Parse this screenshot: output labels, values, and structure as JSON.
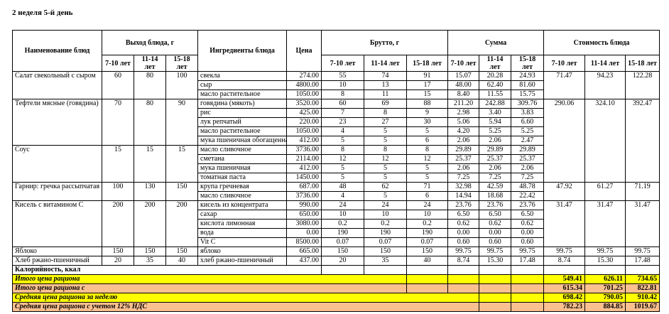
{
  "page": {
    "title": "2 неделя 5-й день"
  },
  "table": {
    "headers": {
      "dish": "Наименование блюд",
      "yield_group": "Выход блюда, г",
      "ingredients": "Ингредиенты блюда",
      "price": "Цена",
      "brutto_group": "Брутто, г",
      "sum_group": "Сумма",
      "cost_group": "Стоимость блюда",
      "age_groups": [
        "7-10 лет",
        "11-14 лет",
        "15-18 лет"
      ]
    },
    "dishes": [
      {
        "name": "Салат свекольный с сыром",
        "yield": [
          "60",
          "80",
          "100"
        ],
        "cost": [
          "71.47",
          "94.23",
          "122.28"
        ],
        "ingredients": [
          {
            "name": "свекла",
            "price": "274.00",
            "brutto": [
              "55",
              "74",
              "91"
            ],
            "sum": [
              "15.07",
              "20.28",
              "24.93"
            ]
          },
          {
            "name": "сыр",
            "price": "4800.00",
            "brutto": [
              "10",
              "13",
              "17"
            ],
            "sum": [
              "48.00",
              "62.40",
              "81.60"
            ]
          },
          {
            "name": "масло растительное",
            "price": "1050.00",
            "brutto": [
              "8",
              "11",
              "15"
            ],
            "sum": [
              "8.40",
              "11.55",
              "15.75"
            ]
          }
        ]
      },
      {
        "name": "Тефтели мясные (говядина)",
        "yield": [
          "70",
          "80",
          "90"
        ],
        "cost": [
          "290.06",
          "324.10",
          "392.47"
        ],
        "ingredients": [
          {
            "name": "говядина (мякоть)",
            "price": "3520.00",
            "brutto": [
              "60",
              "69",
              "88"
            ],
            "sum": [
              "211.20",
              "242.88",
              "309.76"
            ]
          },
          {
            "name": "рис",
            "price": "425.00",
            "brutto": [
              "7",
              "8",
              "9"
            ],
            "sum": [
              "2.98",
              "3.40",
              "3.83"
            ]
          },
          {
            "name": "лук репчатый",
            "price": "220.00",
            "brutto": [
              "23",
              "27",
              "30"
            ],
            "sum": [
              "5.06",
              "5.94",
              "6.60"
            ]
          },
          {
            "name": "масло растительное",
            "price": "1050.00",
            "brutto": [
              "4",
              "5",
              "5"
            ],
            "sum": [
              "4.20",
              "5.25",
              "5.25"
            ]
          },
          {
            "name": "мука пшеничная обогащенная",
            "price": "412.00",
            "brutto": [
              "5",
              "5",
              "6"
            ],
            "sum": [
              "2.06",
              "2.06",
              "2.47"
            ]
          }
        ]
      },
      {
        "name": "Соус",
        "yield": [
          "15",
          "15",
          "15"
        ],
        "cost": null,
        "ingredients": [
          {
            "name": "масло сливочное",
            "price": "3736.00",
            "brutto": [
              "8",
              "8",
              "8"
            ],
            "sum": [
              "29.89",
              "29.89",
              "29.89"
            ]
          },
          {
            "name": "сметана",
            "price": "2114.00",
            "brutto": [
              "12",
              "12",
              "12"
            ],
            "sum": [
              "25.37",
              "25.37",
              "25.37"
            ]
          },
          {
            "name": "мука пшеничная",
            "price": "412.00",
            "brutto": [
              "5",
              "5",
              "5"
            ],
            "sum": [
              "2.06",
              "2.06",
              "2.06"
            ]
          },
          {
            "name": "томатная паста",
            "price": "1450.00",
            "brutto": [
              "5",
              "5",
              "5"
            ],
            "sum": [
              "7.25",
              "7.25",
              "7.25"
            ]
          }
        ]
      },
      {
        "name": "Гарнир: гречка рассыпчатая",
        "yield": [
          "100",
          "130",
          "150"
        ],
        "cost": [
          "47.92",
          "61.27",
          "71.19"
        ],
        "ingredients": [
          {
            "name": "крупа гречневая",
            "price": "687.00",
            "brutto": [
              "48",
              "62",
              "71"
            ],
            "sum": [
              "32.98",
              "42.59",
              "48.78"
            ]
          },
          {
            "name": "масло сливочное",
            "price": "3736.00",
            "brutto": [
              "4",
              "5",
              "6"
            ],
            "sum": [
              "14.94",
              "18.68",
              "22.42"
            ]
          }
        ]
      },
      {
        "name": "Кисель с витамином С",
        "yield": [
          "200",
          "200",
          "200"
        ],
        "cost": [
          "31.47",
          "31.47",
          "31.47"
        ],
        "ingredients": [
          {
            "name": "кисель из концентрата",
            "price": "990.00",
            "brutto": [
              "24",
              "24",
              "24"
            ],
            "sum": [
              "23.76",
              "23.76",
              "23.76"
            ]
          },
          {
            "name": "сахар",
            "price": "650.00",
            "brutto": [
              "10",
              "10",
              "10"
            ],
            "sum": [
              "6.50",
              "6.50",
              "6.50"
            ]
          },
          {
            "name": "кислота лимонная",
            "price": "3080.00",
            "brutto": [
              "0.2",
              "0.2",
              "0.2"
            ],
            "sum": [
              "0.62",
              "0.62",
              "0.62"
            ]
          },
          {
            "name": "вода",
            "price": "0.00",
            "brutto": [
              "190",
              "190",
              "190"
            ],
            "sum": [
              "0.00",
              "0.00",
              "0.00"
            ]
          },
          {
            "name": "Vit C",
            "price": "8500.00",
            "brutto": [
              "0.07",
              "0.07",
              "0.07"
            ],
            "sum": [
              "0.60",
              "0.60",
              "0.60"
            ]
          }
        ]
      },
      {
        "name": "Яблоко",
        "yield": [
          "150",
          "150",
          "150"
        ],
        "cost": [
          "99.75",
          "99.75",
          "99.75"
        ],
        "ingredients": [
          {
            "name": "яблоко",
            "price": "665.00",
            "brutto": [
              "150",
              "150",
              "150"
            ],
            "sum": [
              "99.75",
              "99.75",
              "99.75"
            ]
          }
        ]
      },
      {
        "name": "Хлеб ржано-пшеничный",
        "yield": [
          "20",
          "35",
          "40"
        ],
        "cost": [
          "8.74",
          "15.30",
          "17.48"
        ],
        "ingredients": [
          {
            "name": "хлеб ржано-пшеничный",
            "price": "437.00",
            "brutto": [
              "20",
              "35",
              "40"
            ],
            "sum": [
              "8.74",
              "15.30",
              "17.48"
            ]
          }
        ]
      }
    ],
    "footer_rows": [
      {
        "label": "Калорийность, ккал",
        "values": [
          "",
          "",
          ""
        ],
        "highlight": "none",
        "italic": false
      },
      {
        "label": "Итого цена рациона",
        "values": [
          "549.41",
          "626.11",
          "734.65"
        ],
        "highlight": "yellow",
        "italic": true
      },
      {
        "label": "Итого цена рациона с",
        "values": [
          "615.34",
          "701.25",
          "822.81"
        ],
        "highlight": "orange",
        "italic": true
      },
      {
        "label": "Средняя цена рациона за неделю",
        "values": [
          "698.42",
          "790.05",
          "910.42"
        ],
        "highlight": "yellow",
        "italic": true
      },
      {
        "label": "Средняя цена рациона с учетом 12% НДС",
        "values": [
          "782.23",
          "884.85",
          "1019.67"
        ],
        "highlight": "orange",
        "italic": true
      }
    ]
  },
  "colors": {
    "highlight_yellow": "#FFFF00",
    "highlight_orange": "#FAC090",
    "footer_value_red": "#9C0006",
    "border": "#000000"
  }
}
